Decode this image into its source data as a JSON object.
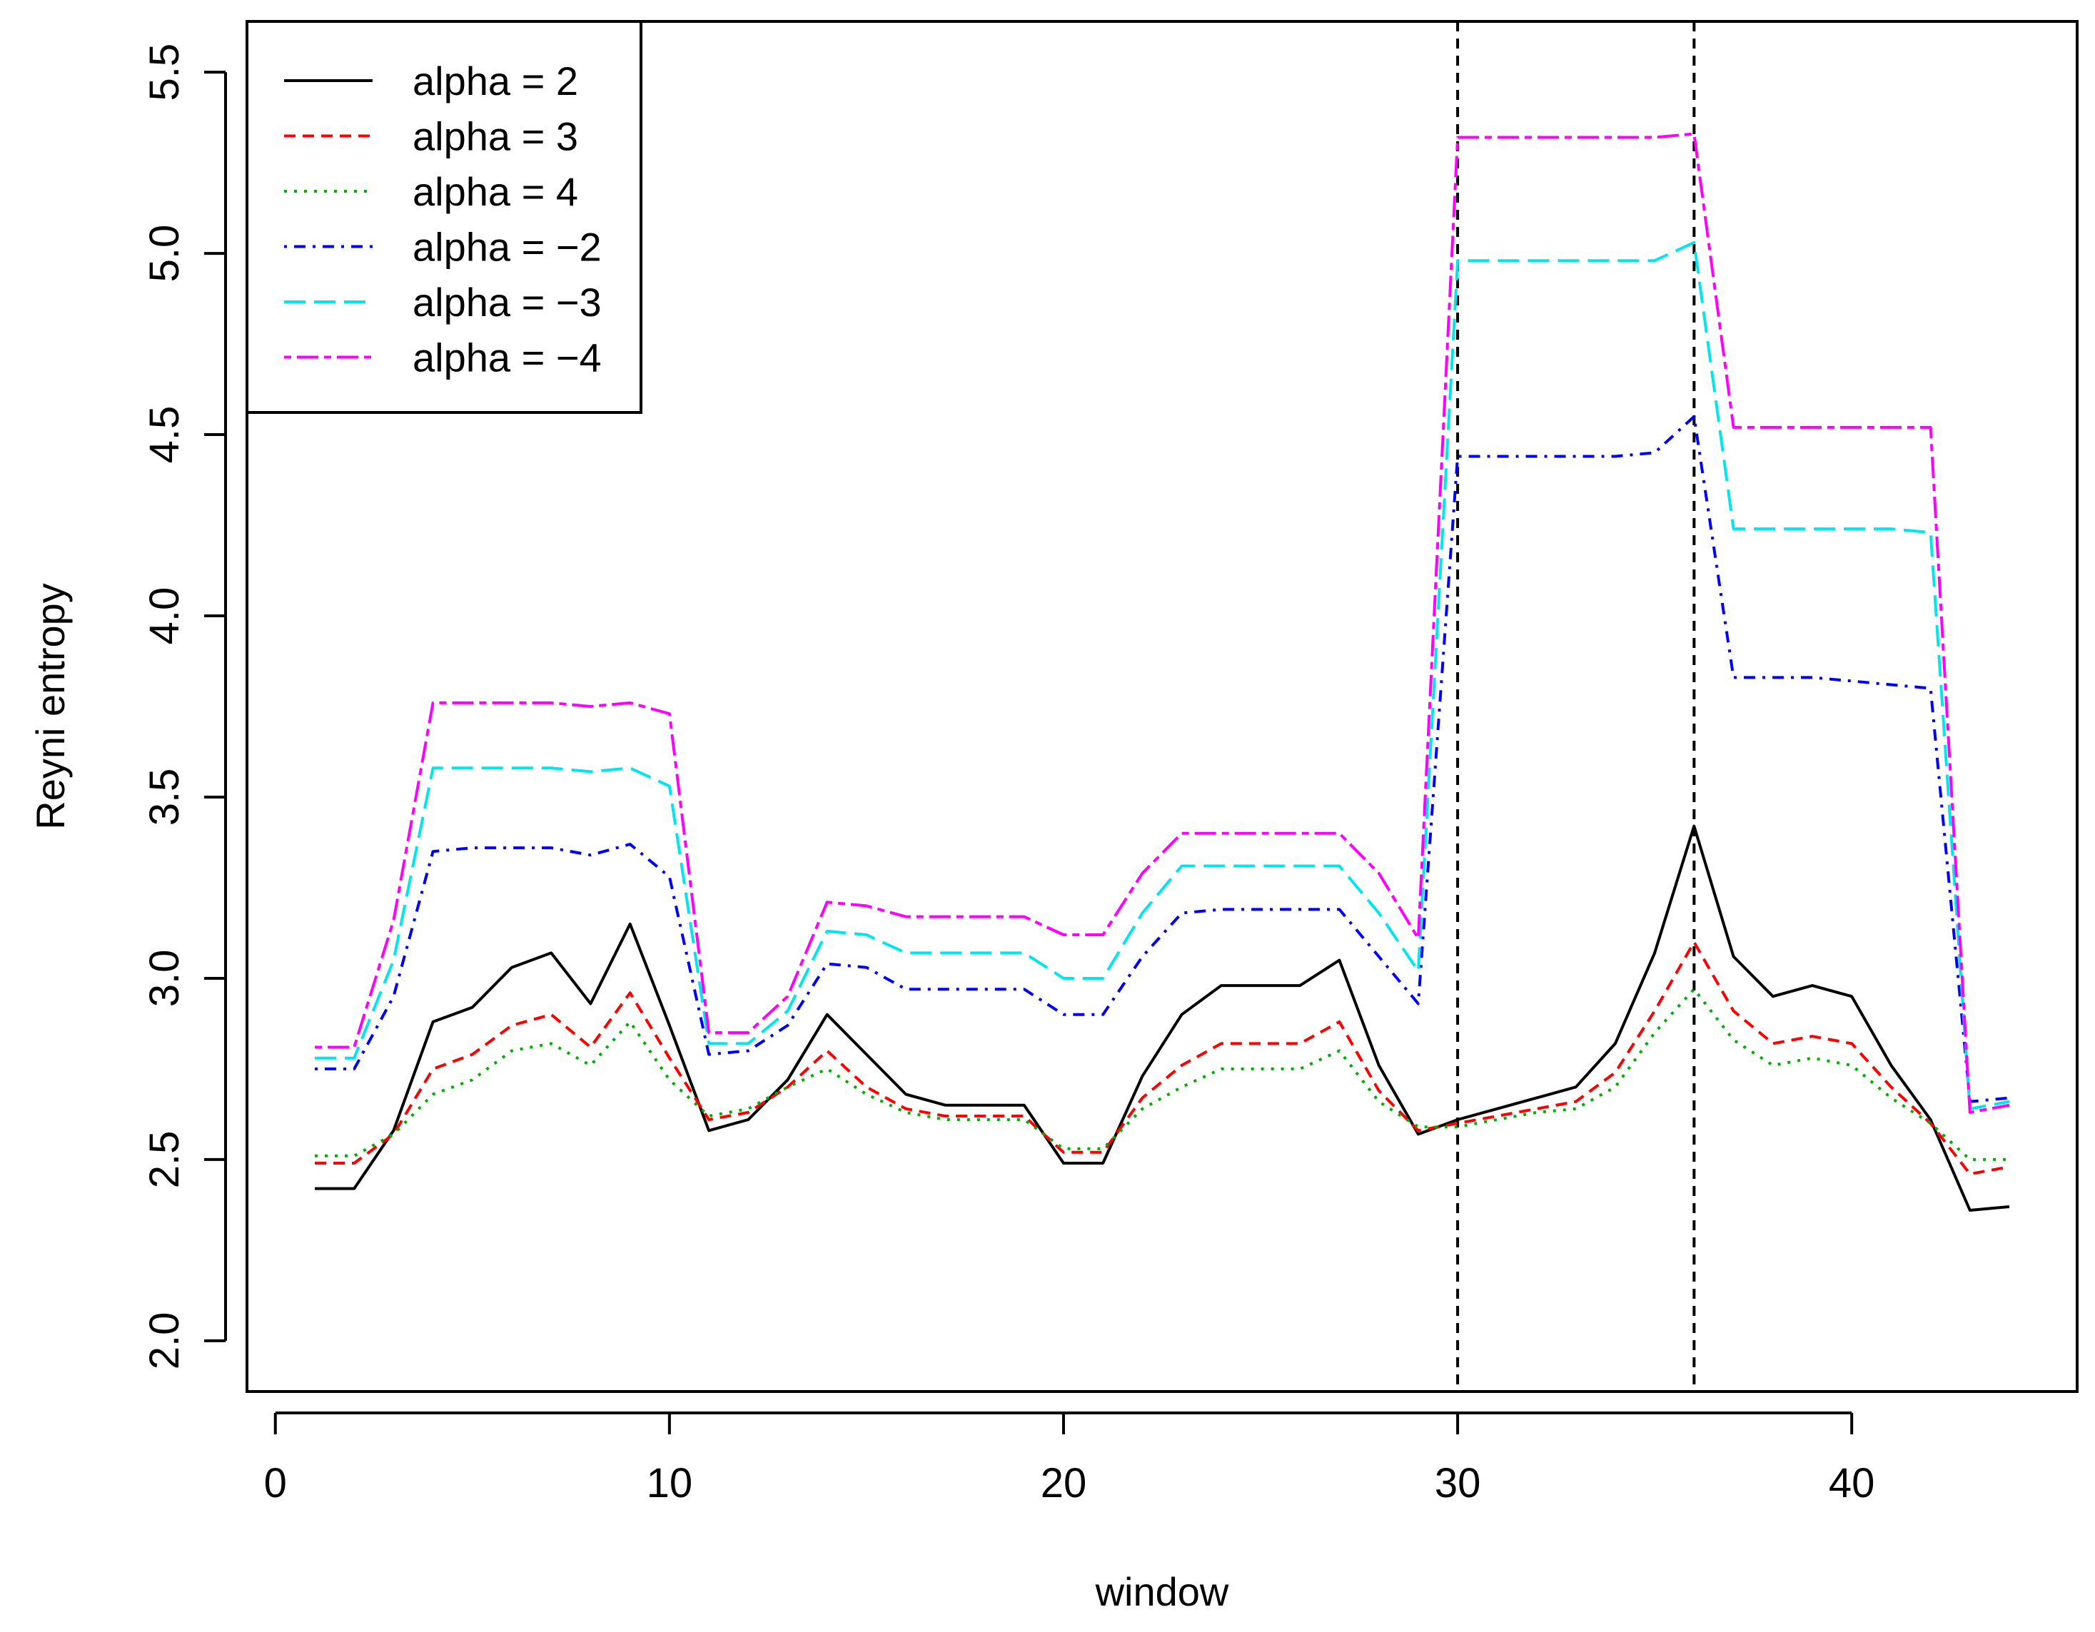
{
  "chart_data": {
    "type": "line",
    "title": "",
    "xlabel": "window",
    "ylabel": "Reyni entropy",
    "xlim": [
      -0.72,
      45.72
    ],
    "ylim": [
      1.86,
      5.64
    ],
    "xticks": [
      0,
      10,
      20,
      30,
      40
    ],
    "yticks": [
      2.0,
      2.5,
      3.0,
      3.5,
      4.0,
      4.5,
      5.0,
      5.5
    ],
    "xtick_labels": [
      "0",
      "10",
      "20",
      "30",
      "40"
    ],
    "ytick_labels": [
      "2.0",
      "2.5",
      "3.0",
      "3.5",
      "4.0",
      "4.5",
      "5.0",
      "5.5"
    ],
    "vlines": [
      30,
      36
    ],
    "legend_position": "top-left",
    "x": [
      1,
      2,
      3,
      4,
      5,
      6,
      7,
      8,
      9,
      10,
      11,
      12,
      13,
      14,
      15,
      16,
      17,
      18,
      19,
      20,
      21,
      22,
      23,
      24,
      25,
      26,
      27,
      28,
      29,
      30,
      31,
      32,
      33,
      34,
      35,
      36,
      37,
      38,
      39,
      40,
      41,
      42,
      43,
      44
    ],
    "series": [
      {
        "name": "alpha = 2",
        "color": "#000000",
        "dash": "solid",
        "values": [
          2.42,
          2.42,
          2.58,
          2.88,
          2.92,
          3.03,
          3.07,
          2.93,
          3.15,
          2.87,
          2.58,
          2.61,
          2.72,
          2.9,
          2.79,
          2.68,
          2.65,
          2.65,
          2.65,
          2.49,
          2.49,
          2.73,
          2.9,
          2.98,
          2.98,
          2.98,
          3.05,
          2.76,
          2.57,
          2.61,
          2.64,
          2.67,
          2.7,
          2.82,
          3.07,
          3.42,
          3.06,
          2.95,
          2.98,
          2.95,
          2.76,
          2.61,
          2.36,
          2.37
        ]
      },
      {
        "name": "alpha = 3",
        "color": "#ff0000",
        "dash": "dashed",
        "values": [
          2.49,
          2.49,
          2.57,
          2.75,
          2.79,
          2.87,
          2.9,
          2.81,
          2.96,
          2.78,
          2.61,
          2.63,
          2.7,
          2.8,
          2.7,
          2.64,
          2.62,
          2.62,
          2.62,
          2.52,
          2.52,
          2.67,
          2.76,
          2.82,
          2.82,
          2.82,
          2.88,
          2.69,
          2.58,
          2.6,
          2.62,
          2.64,
          2.66,
          2.74,
          2.91,
          3.1,
          2.91,
          2.82,
          2.84,
          2.82,
          2.7,
          2.6,
          2.46,
          2.48
        ]
      },
      {
        "name": "alpha = 4",
        "color": "#00b000",
        "dash": "dotted",
        "values": [
          2.51,
          2.51,
          2.57,
          2.68,
          2.72,
          2.8,
          2.82,
          2.76,
          2.88,
          2.72,
          2.62,
          2.64,
          2.7,
          2.75,
          2.68,
          2.63,
          2.61,
          2.61,
          2.61,
          2.53,
          2.53,
          2.64,
          2.7,
          2.75,
          2.75,
          2.75,
          2.8,
          2.66,
          2.59,
          2.59,
          2.61,
          2.63,
          2.64,
          2.7,
          2.85,
          2.97,
          2.83,
          2.76,
          2.78,
          2.76,
          2.67,
          2.6,
          2.5,
          2.5
        ]
      },
      {
        "name": "alpha = −2",
        "color": "#0000ff",
        "dash": "dotdash",
        "values": [
          2.75,
          2.75,
          2.95,
          3.35,
          3.36,
          3.36,
          3.36,
          3.34,
          3.37,
          3.28,
          2.79,
          2.8,
          2.87,
          3.04,
          3.03,
          2.97,
          2.97,
          2.97,
          2.97,
          2.9,
          2.9,
          3.06,
          3.18,
          3.19,
          3.19,
          3.19,
          3.19,
          3.06,
          2.93,
          4.44,
          4.44,
          4.44,
          4.44,
          4.44,
          4.45,
          4.55,
          3.83,
          3.83,
          3.83,
          3.82,
          3.81,
          3.8,
          2.66,
          2.67
        ]
      },
      {
        "name": "alpha = −3",
        "color": "#00e5ee",
        "dash": "longdash",
        "values": [
          2.78,
          2.78,
          3.05,
          3.58,
          3.58,
          3.58,
          3.58,
          3.57,
          3.58,
          3.53,
          2.82,
          2.82,
          2.91,
          3.13,
          3.12,
          3.07,
          3.07,
          3.07,
          3.07,
          3.0,
          3.0,
          3.18,
          3.31,
          3.31,
          3.31,
          3.31,
          3.31,
          3.18,
          3.02,
          4.98,
          4.98,
          4.98,
          4.98,
          4.98,
          4.98,
          5.03,
          4.24,
          4.24,
          4.24,
          4.24,
          4.24,
          4.23,
          2.64,
          2.66
        ]
      },
      {
        "name": "alpha = −4",
        "color": "#ff00ff",
        "dash": "twodash",
        "values": [
          2.81,
          2.81,
          3.16,
          3.76,
          3.76,
          3.76,
          3.76,
          3.75,
          3.76,
          3.73,
          2.85,
          2.85,
          2.95,
          3.21,
          3.2,
          3.17,
          3.17,
          3.17,
          3.17,
          3.12,
          3.12,
          3.29,
          3.4,
          3.4,
          3.4,
          3.4,
          3.4,
          3.29,
          3.11,
          5.32,
          5.32,
          5.32,
          5.32,
          5.32,
          5.32,
          5.33,
          4.52,
          4.52,
          4.52,
          4.52,
          4.52,
          4.52,
          2.63,
          2.65
        ]
      }
    ]
  }
}
